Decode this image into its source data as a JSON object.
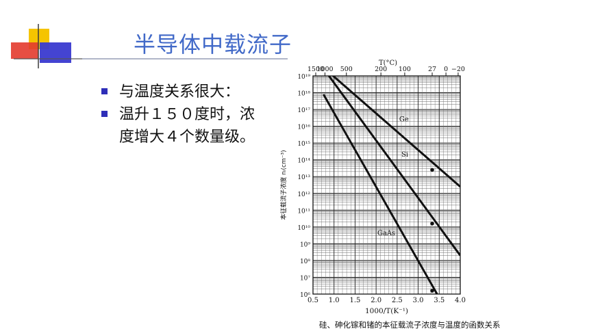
{
  "slide": {
    "title": "半导体中载流子",
    "bullets": [
      "与温度关系很大：",
      "温升１５０度时，浓度增大４个数量级。"
    ]
  },
  "colors": {
    "title": "#4169c8",
    "bullet": "#2e2eb8",
    "deco_yellow": "#f5c400",
    "deco_red": "#e33b2e",
    "deco_blue": "#3a3ad0"
  },
  "chart_data": {
    "type": "line",
    "title": "",
    "xlabel": "1000/T(K⁻¹)",
    "ylabel": "本征载流子浓度 nᵢ(cm⁻³)",
    "top_axis_label": "T(°C)",
    "xlim": [
      0.5,
      4.0
    ],
    "ylim_log10": [
      6,
      19
    ],
    "grid": true,
    "x_ticks": [
      "0.5",
      "1.0",
      "1.5",
      "2.0",
      "2.5",
      "3.0",
      "3.5",
      "4.0"
    ],
    "y_ticks": [
      "10⁶",
      "10⁷",
      "10⁸",
      "10⁹",
      "10¹⁰",
      "10¹¹",
      "10¹²",
      "10¹³",
      "10¹⁴",
      "10¹⁵",
      "10¹⁶",
      "10¹⁷",
      "10¹⁸",
      "10¹⁹"
    ],
    "top_ticks": [
      {
        "label": "1500",
        "x": 0.565
      },
      {
        "label": "1000",
        "x": 0.785
      },
      {
        "label": "500",
        "x": 1.294
      },
      {
        "label": "200",
        "x": 2.114
      },
      {
        "label": "100",
        "x": 2.68
      },
      {
        "label": "27",
        "x": 3.333
      },
      {
        "label": "0",
        "x": 3.66
      },
      {
        "label": "−20",
        "x": 3.95
      }
    ],
    "series": [
      {
        "name": "Ge",
        "x": [
          0.75,
          4.0
        ],
        "log10_y": [
          19.5,
          12.4
        ],
        "label_at": [
          2.55,
          16.3
        ],
        "marker": [
          3.333,
          13.4
        ]
      },
      {
        "name": "Si",
        "x": [
          0.85,
          4.0
        ],
        "log10_y": [
          19.1,
          8.3
        ],
        "label_at": [
          2.6,
          14.2
        ],
        "marker": [
          3.333,
          10.2
        ]
      },
      {
        "name": "GaAs",
        "x": [
          0.75,
          3.45
        ],
        "log10_y": [
          17.9,
          6.0
        ],
        "label_at": [
          2.03,
          9.5
        ],
        "marker": [
          3.333,
          6.2
        ]
      }
    ],
    "caption": "硅、砷化镓和锗的本征载流子浓度与温度的函数关系"
  }
}
